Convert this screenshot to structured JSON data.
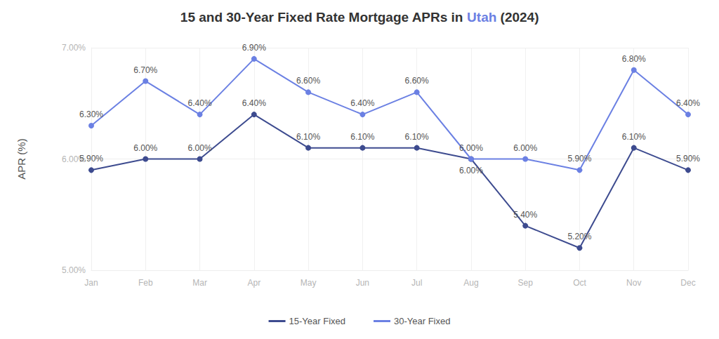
{
  "chart_data": {
    "type": "line",
    "title": "15 and 30-Year Fixed Rate Mortgage APRs in Utah (2024)",
    "y_label": "APR (%)",
    "categories": [
      "Jan",
      "Feb",
      "Mar",
      "Apr",
      "May",
      "Jun",
      "Jul",
      "Aug",
      "Sep",
      "Oct",
      "Nov",
      "Dec"
    ],
    "series": [
      {
        "name": "15-Year Fixed",
        "color": "#3d4b8f",
        "marker": "circle",
        "line_style": "solid",
        "values": [
          5.9,
          6.0,
          6.0,
          6.4,
          6.1,
          6.1,
          6.1,
          6.0,
          5.4,
          5.2,
          6.1,
          5.9
        ],
        "value_labels": [
          "5.90%",
          "6.00%",
          "6.00%",
          "6.40%",
          "6.10%",
          "6.10%",
          "6.10%",
          "6.00%",
          "5.40%",
          "5.20%",
          "6.10%",
          "5.90%"
        ]
      },
      {
        "name": "30-Year Fixed",
        "color": "#6b80e3",
        "marker": "circle",
        "line_style": "solid",
        "values": [
          6.3,
          6.7,
          6.4,
          6.9,
          6.6,
          6.4,
          6.6,
          6.0,
          6.0,
          5.9,
          6.8,
          6.4
        ],
        "value_labels": [
          "6.30%",
          "6.70%",
          "6.40%",
          "6.90%",
          "6.60%",
          "6.40%",
          "6.60%",
          "6.00%",
          "6.00%",
          "5.90%",
          "6.80%",
          "6.40%"
        ]
      }
    ],
    "ylim": [
      5,
      7
    ],
    "yticks": [
      {
        "value": 5,
        "label": "5.00%"
      },
      {
        "value": 6,
        "label": "6.00%"
      },
      {
        "value": 7,
        "label": "7.00%"
      }
    ],
    "grid": true,
    "legend": "bottom",
    "data_labels": true
  }
}
